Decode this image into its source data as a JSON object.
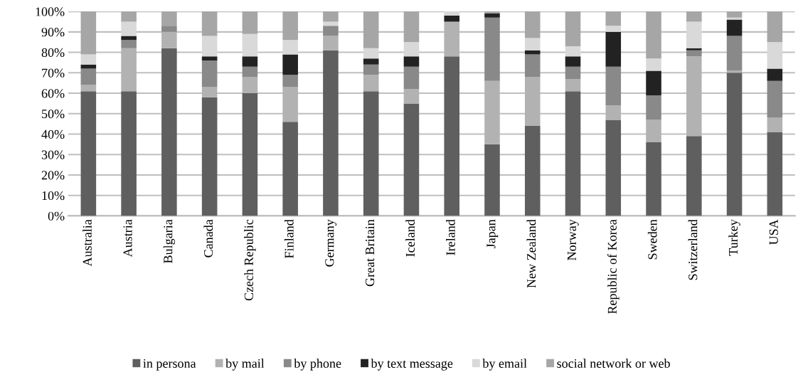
{
  "chart_data": {
    "type": "bar",
    "stacked": true,
    "categories": [
      "Australia",
      "Austria",
      "Bulgaria",
      "Canada",
      "Czech Republic",
      "Finland",
      "Germany",
      "Great Britain",
      "Iceland",
      "Ireland",
      "Japan",
      "New Zealand",
      "Norway",
      "Republic of Korea",
      "Sweden",
      "Switzerland",
      "Turkey",
      "USA"
    ],
    "series": [
      {
        "name": "in persona",
        "color": "#5f5f5f",
        "values": [
          61,
          61,
          82,
          58,
          60,
          46,
          81,
          61,
          55,
          78,
          35,
          44,
          61,
          47,
          36,
          39,
          70,
          41
        ]
      },
      {
        "name": "by mail",
        "color": "#b2b2b2",
        "values": [
          3,
          21,
          8,
          5,
          8,
          17,
          7,
          8,
          7,
          17,
          31,
          24,
          6,
          7,
          11,
          39,
          1,
          7
        ]
      },
      {
        "name": "by phone",
        "color": "#898989",
        "values": [
          8,
          4,
          3,
          13,
          5,
          6,
          5,
          5,
          11,
          0,
          31,
          11,
          6,
          19,
          12,
          3,
          17,
          18
        ]
      },
      {
        "name": "by text message",
        "color": "#222222",
        "values": [
          2,
          2,
          0,
          2,
          5,
          10,
          0,
          3,
          5,
          3,
          2,
          2,
          5,
          17,
          12,
          1,
          8,
          6
        ]
      },
      {
        "name": "by email",
        "color": "#d9d9d9",
        "values": [
          5,
          7,
          0,
          10,
          11,
          7,
          2,
          5,
          7,
          2,
          0,
          6,
          5,
          3,
          6,
          13,
          1,
          13
        ]
      },
      {
        "name": "social network or web",
        "color": "#a6a6a6",
        "values": [
          21,
          5,
          7,
          12,
          11,
          14,
          5,
          18,
          15,
          0,
          1,
          13,
          17,
          7,
          23,
          5,
          3,
          15
        ]
      }
    ],
    "ylim": [
      0,
      100
    ],
    "yticks": [
      {
        "value": 0,
        "label": "0%"
      },
      {
        "value": 10,
        "label": "10%"
      },
      {
        "value": 20,
        "label": "20%"
      },
      {
        "value": 30,
        "label": "30%"
      },
      {
        "value": 40,
        "label": "40%"
      },
      {
        "value": 50,
        "label": "50%"
      },
      {
        "value": 60,
        "label": "60%"
      },
      {
        "value": 70,
        "label": "70%"
      },
      {
        "value": 80,
        "label": "80%"
      },
      {
        "value": 90,
        "label": "90%"
      },
      {
        "value": 100,
        "label": "100%"
      }
    ],
    "grid": "y",
    "legend": "bottom"
  }
}
